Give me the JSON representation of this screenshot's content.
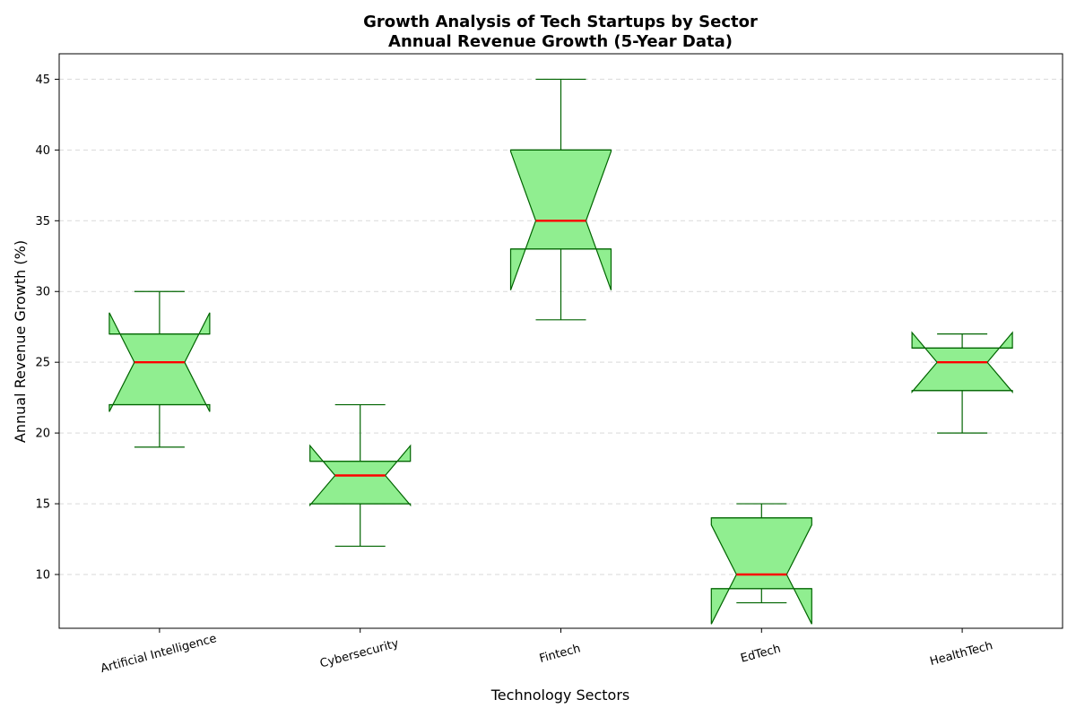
{
  "chart_data": {
    "type": "boxplot",
    "notched": true,
    "title": "Growth Analysis of Tech Startups by Sector",
    "subtitle": "Annual Revenue Growth (5-Year Data)",
    "xlabel": "Technology Sectors",
    "ylabel": "Annual Revenue Growth (%)",
    "ylim": [
      6.2,
      46.8
    ],
    "yticks": [
      10,
      15,
      20,
      25,
      30,
      35,
      40,
      45
    ],
    "grid": true,
    "grid_axis": "y",
    "categories": [
      "Artificial Intelligence",
      "Cybersecurity",
      "Fintech",
      "EdTech",
      "HealthTech"
    ],
    "boxes": [
      {
        "category": "Artificial Intelligence",
        "whisker_low": 19,
        "q1": 22,
        "median": 25,
        "q3": 27,
        "whisker_high": 30,
        "notch_low": 21.5,
        "notch_high": 28.5
      },
      {
        "category": "Cybersecurity",
        "whisker_low": 12,
        "q1": 15,
        "median": 17,
        "q3": 18,
        "whisker_high": 22,
        "notch_low": 14.9,
        "notch_high": 19.1
      },
      {
        "category": "Fintech",
        "whisker_low": 28,
        "q1": 33,
        "median": 35,
        "q3": 40,
        "whisker_high": 45,
        "notch_low": 30.1,
        "notch_high": 39.9
      },
      {
        "category": "EdTech",
        "whisker_low": 8,
        "q1": 9,
        "median": 10,
        "q3": 14,
        "whisker_high": 15,
        "notch_low": 6.5,
        "notch_high": 13.5
      },
      {
        "category": "HealthTech",
        "whisker_low": 20,
        "q1": 23,
        "median": 25,
        "q3": 26,
        "whisker_high": 27,
        "notch_low": 22.9,
        "notch_high": 27.1
      }
    ],
    "colors": {
      "box_fill": "#90ee90",
      "box_edge": "#006400",
      "median": "#ff0000",
      "whisker": "#006400"
    }
  }
}
